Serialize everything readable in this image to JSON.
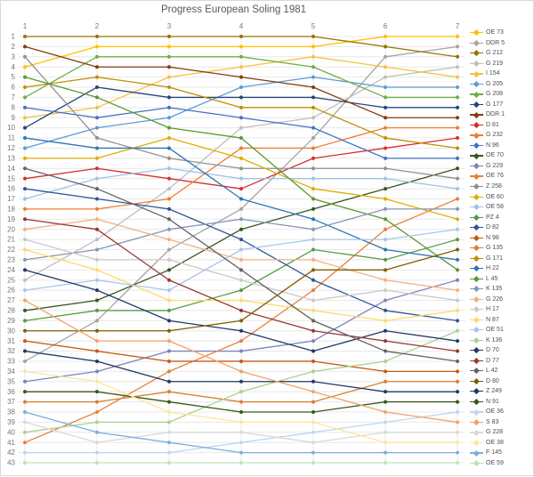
{
  "chart_data": {
    "type": "line",
    "title": "Progress European Soling 1981",
    "xlabel": "",
    "ylabel": "",
    "x_axis": {
      "position": "top",
      "categories": [
        "1",
        "2",
        "3",
        "4",
        "5",
        "6",
        "7"
      ]
    },
    "y_axis": {
      "ticks": [
        "1",
        "2",
        "3",
        "4",
        "5",
        "6",
        "7",
        "8",
        "9",
        "10",
        "11",
        "12",
        "13",
        "14",
        "15",
        "16",
        "17",
        "18",
        "19",
        "20",
        "21",
        "22",
        "23",
        "24",
        "25",
        "26",
        "27",
        "28",
        "29",
        "30",
        "31",
        "32",
        "33",
        "34",
        "35",
        "36",
        "37",
        "38",
        "39",
        "40",
        "41",
        "42",
        "43"
      ],
      "min": 1,
      "max": 43,
      "inverted": true
    },
    "grid": true,
    "legend_position": "right",
    "marker": "circle",
    "series": [
      {
        "name": "OE 73",
        "color": "#FFC000",
        "positions": [
          4,
          2,
          2,
          2,
          2,
          1,
          1
        ]
      },
      {
        "name": "DDR 5",
        "color": "#A5A5A5",
        "positions": [
          33,
          29,
          22,
          18,
          11,
          3,
          2
        ]
      },
      {
        "name": "G 212",
        "color": "#997300",
        "positions": [
          1,
          1,
          1,
          1,
          1,
          2,
          3
        ]
      },
      {
        "name": "G 219",
        "color": "#BFBFBF",
        "positions": [
          25,
          21,
          16,
          10,
          9,
          5,
          4
        ]
      },
      {
        "name": "I 154",
        "color": "#F5C242",
        "positions": [
          9,
          8,
          5,
          4,
          3,
          4,
          5
        ]
      },
      {
        "name": "G 205",
        "color": "#5B9BD5",
        "positions": [
          12,
          10,
          9,
          6,
          5,
          6,
          6
        ]
      },
      {
        "name": "G 208",
        "color": "#70AD47",
        "positions": [
          7,
          3,
          3,
          3,
          4,
          7,
          7
        ]
      },
      {
        "name": "G 177",
        "color": "#264478",
        "positions": [
          10,
          6,
          7,
          7,
          7,
          8,
          8
        ]
      },
      {
        "name": "DDR 1",
        "color": "#843C0C",
        "positions": [
          2,
          4,
          4,
          5,
          6,
          9,
          9
        ]
      },
      {
        "name": "D 81",
        "color": "#D62E2E",
        "positions": [
          15,
          14,
          15,
          16,
          13,
          12,
          11
        ]
      },
      {
        "name": "G 232",
        "color": "#ED7D31",
        "positions": [
          18,
          18,
          17,
          12,
          12,
          10,
          10
        ]
      },
      {
        "name": "N 96",
        "color": "#4472C4",
        "positions": [
          8,
          9,
          8,
          9,
          10,
          13,
          13
        ]
      },
      {
        "name": "OE 70",
        "color": "#375623",
        "positions": [
          28,
          27,
          24,
          20,
          18,
          16,
          14
        ]
      },
      {
        "name": "G 229",
        "color": "#7C83BC",
        "positions": [
          35,
          34,
          32,
          32,
          31,
          27,
          25
        ]
      },
      {
        "name": "OE 76",
        "color": "#E8803A",
        "positions": [
          41,
          38,
          34,
          31,
          26,
          20,
          17
        ]
      },
      {
        "name": "Z 258",
        "color": "#909090",
        "positions": [
          3,
          11,
          13,
          14,
          14,
          14,
          15
        ]
      },
      {
        "name": "OE 60",
        "color": "#DFAE00",
        "positions": [
          13,
          13,
          11,
          13,
          16,
          17,
          19
        ]
      },
      {
        "name": "OE 58",
        "color": "#9DC3E6",
        "positions": [
          17,
          15,
          14,
          15,
          15,
          15,
          16
        ]
      },
      {
        "name": "PZ 4",
        "color": "#569D43",
        "positions": [
          29,
          28,
          28,
          26,
          22,
          23,
          21
        ]
      },
      {
        "name": "D 82",
        "color": "#2F5597",
        "positions": [
          16,
          17,
          18,
          21,
          25,
          28,
          29
        ]
      },
      {
        "name": "N 98",
        "color": "#C55A11",
        "positions": [
          31,
          32,
          33,
          33,
          33,
          34,
          34
        ]
      },
      {
        "name": "G 135",
        "color": "#D98032",
        "positions": [
          37,
          37,
          36,
          37,
          37,
          35,
          35
        ]
      },
      {
        "name": "G 171",
        "color": "#BF9000",
        "positions": [
          6,
          5,
          6,
          8,
          8,
          11,
          12
        ]
      },
      {
        "name": "H 22",
        "color": "#2E75B6",
        "positions": [
          11,
          12,
          12,
          17,
          19,
          22,
          23
        ]
      },
      {
        "name": "L 45",
        "color": "#5E9732",
        "positions": [
          5,
          7,
          10,
          11,
          17,
          19,
          24
        ]
      },
      {
        "name": "K 135",
        "color": "#8497B0",
        "positions": [
          23,
          22,
          20,
          19,
          20,
          18,
          18
        ]
      },
      {
        "name": "G 226",
        "color": "#F4B183",
        "positions": [
          20,
          19,
          21,
          23,
          23,
          25,
          26
        ]
      },
      {
        "name": "H 17",
        "color": "#C9C9C9",
        "positions": [
          21,
          23,
          23,
          25,
          27,
          26,
          27
        ]
      },
      {
        "name": "N 87",
        "color": "#FFD966",
        "positions": [
          22,
          24,
          27,
          27,
          28,
          29,
          28
        ]
      },
      {
        "name": "OE 51",
        "color": "#A9C4EB",
        "positions": [
          26,
          25,
          26,
          22,
          21,
          21,
          20
        ]
      },
      {
        "name": "K 136",
        "color": "#A9D18E",
        "positions": [
          40,
          39,
          39,
          36,
          34,
          33,
          30
        ]
      },
      {
        "name": "D 70",
        "color": "#1F3864",
        "positions": [
          24,
          26,
          29,
          30,
          32,
          30,
          31
        ]
      },
      {
        "name": "D 77",
        "color": "#953735",
        "positions": [
          19,
          20,
          25,
          28,
          30,
          31,
          32
        ]
      },
      {
        "name": "L 42",
        "color": "#636363",
        "positions": [
          14,
          16,
          19,
          24,
          29,
          32,
          33
        ]
      },
      {
        "name": "D 80",
        "color": "#7F6000",
        "positions": [
          30,
          30,
          30,
          29,
          24,
          24,
          22
        ]
      },
      {
        "name": "Z 249",
        "color": "#203864",
        "positions": [
          32,
          33,
          35,
          35,
          35,
          36,
          36
        ]
      },
      {
        "name": "N 91",
        "color": "#38571A",
        "positions": [
          36,
          36,
          37,
          38,
          38,
          37,
          37
        ]
      },
      {
        "name": "OE 36",
        "color": "#BDD7EE",
        "positions": [
          42,
          42,
          42,
          41,
          40,
          39,
          38
        ]
      },
      {
        "name": "S 83",
        "color": "#F2A268",
        "positions": [
          27,
          31,
          31,
          34,
          36,
          38,
          39
        ]
      },
      {
        "name": "G 228",
        "color": "#D9D9D9",
        "positions": [
          39,
          41,
          40,
          40,
          41,
          40,
          40
        ]
      },
      {
        "name": "OE 38",
        "color": "#FFE699",
        "positions": [
          34,
          35,
          38,
          39,
          39,
          41,
          41
        ]
      },
      {
        "name": "F 145",
        "color": "#7CAFDD",
        "positions": [
          38,
          40,
          41,
          42,
          42,
          42,
          42
        ]
      },
      {
        "name": "OE 59",
        "color": "#C5E0B4",
        "positions": [
          43,
          43,
          43,
          43,
          43,
          43,
          43
        ]
      }
    ]
  },
  "style": {
    "grid_color": "#E8E8E8",
    "axis_label_color": "#757575",
    "title_color": "#595959",
    "legend_text_color": "#4d4d4d",
    "background": "#ffffff",
    "border_color": "#d9d9d9"
  }
}
